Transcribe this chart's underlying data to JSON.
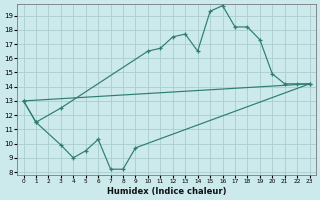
{
  "xlabel": "Humidex (Indice chaleur)",
  "bg_color": "#cce9eb",
  "line_color": "#2e7d70",
  "grid_color": "#aacdd0",
  "ylim": [
    7.8,
    19.8
  ],
  "xlim": [
    -0.5,
    23.5
  ],
  "yticks": [
    8,
    9,
    10,
    11,
    12,
    13,
    14,
    15,
    16,
    17,
    18,
    19
  ],
  "xticks": [
    0,
    1,
    2,
    3,
    4,
    5,
    6,
    7,
    8,
    9,
    10,
    11,
    12,
    13,
    14,
    15,
    16,
    17,
    18,
    19,
    20,
    21,
    22,
    23
  ],
  "curve1_x": [
    0,
    1,
    3,
    10,
    11,
    12,
    13,
    14,
    15,
    16,
    17,
    18,
    19,
    20,
    21,
    22,
    23
  ],
  "curve1_y": [
    13.0,
    11.5,
    12.5,
    16.5,
    16.7,
    17.5,
    17.7,
    16.5,
    19.3,
    19.7,
    18.2,
    18.2,
    17.3,
    14.9,
    14.2,
    14.2,
    14.2
  ],
  "curve2_x": [
    0,
    23
  ],
  "curve2_y": [
    13.0,
    14.2
  ],
  "curve3_x": [
    0,
    1,
    3,
    4,
    5,
    6,
    7,
    8,
    9,
    23
  ],
  "curve3_y": [
    13.0,
    11.5,
    9.9,
    9.0,
    9.5,
    10.3,
    8.2,
    8.2,
    9.7,
    14.2
  ]
}
